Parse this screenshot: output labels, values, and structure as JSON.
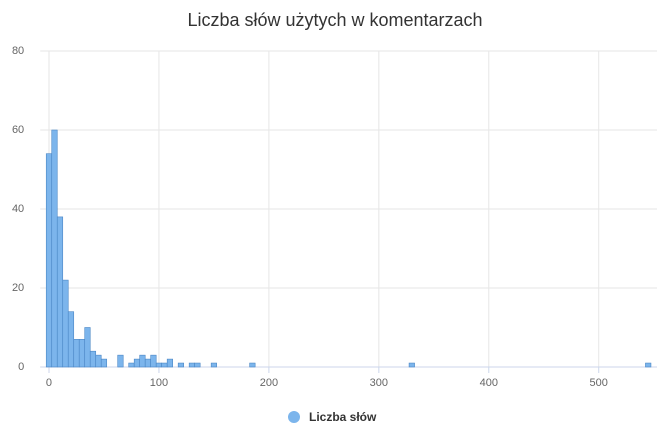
{
  "chart_data": {
    "type": "histogram",
    "title": "Liczba słów użytych w komentarzach",
    "series": [
      {
        "name": "Liczba słów",
        "color": "#7cb5ec",
        "bins": [
          -2.5,
          2.5,
          7.5,
          12.5,
          17.5,
          22.5,
          27.5,
          32.5,
          37.5,
          42.5,
          47.5,
          52.5,
          57.5,
          62.5,
          67.5,
          72.5,
          77.5,
          82.5,
          87.5,
          92.5,
          97.5,
          102.5,
          107.5,
          112.5,
          117.5,
          122.5,
          127.5,
          132.5,
          137.5,
          142.5,
          147.5,
          152.5,
          157.5,
          162.5,
          167.5,
          172.5,
          177.5,
          182.5,
          187.5,
          192.5,
          197.5,
          202.5,
          207.5,
          212.5,
          217.5,
          222.5,
          227.5,
          232.5,
          237.5,
          242.5,
          247.5,
          252.5,
          257.5,
          262.5,
          267.5,
          272.5,
          277.5,
          282.5,
          287.5,
          292.5,
          297.5,
          302.5,
          307.5,
          312.5,
          317.5,
          322.5,
          327.5,
          332.5,
          337.5,
          342.5,
          347.5,
          352.5,
          357.5,
          362.5,
          367.5,
          372.5,
          377.5,
          382.5,
          387.5,
          392.5,
          397.5,
          402.5,
          407.5,
          412.5,
          417.5,
          422.5,
          427.5,
          432.5,
          437.5,
          442.5,
          447.5,
          452.5,
          457.5,
          462.5,
          467.5,
          472.5,
          477.5,
          482.5,
          487.5,
          492.5,
          497.5,
          502.5,
          507.5,
          512.5,
          517.5,
          522.5,
          527.5,
          532.5,
          537.5,
          542.5,
          547.5
        ],
        "values": [
          54,
          60,
          38,
          22,
          14,
          7,
          7,
          10,
          4,
          3,
          2,
          0,
          0,
          3,
          0,
          1,
          2,
          3,
          2,
          3,
          1,
          1,
          2,
          0,
          1,
          0,
          1,
          1,
          0,
          0,
          1,
          0,
          0,
          0,
          0,
          0,
          0,
          1,
          0,
          0,
          0,
          0,
          0,
          0,
          0,
          0,
          0,
          0,
          0,
          0,
          0,
          0,
          0,
          0,
          0,
          0,
          0,
          0,
          0,
          0,
          0,
          0,
          0,
          0,
          0,
          0,
          1,
          0,
          0,
          0,
          0,
          0,
          0,
          0,
          0,
          0,
          0,
          0,
          0,
          0,
          0,
          0,
          0,
          0,
          0,
          0,
          0,
          0,
          0,
          0,
          0,
          0,
          0,
          0,
          0,
          0,
          0,
          0,
          0,
          0,
          0,
          0,
          0,
          0,
          0,
          0,
          0,
          0,
          0,
          1
        ]
      }
    ],
    "xlim": [
      -8,
      553
    ],
    "xticks": [
      0,
      100,
      200,
      300,
      400,
      500
    ],
    "ylim": [
      0,
      80
    ],
    "yticks": [
      0,
      20,
      40,
      60,
      80
    ],
    "grid": true
  }
}
